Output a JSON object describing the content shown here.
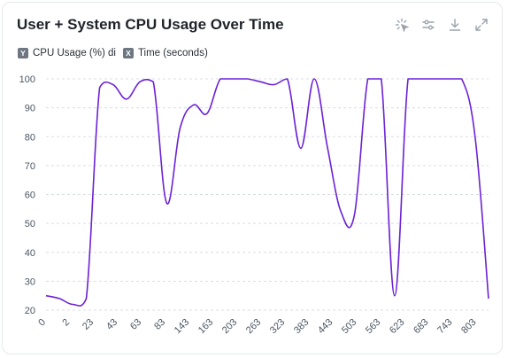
{
  "title": "User + System CPU Usage Over Time",
  "toolbar": {
    "items": [
      {
        "name": "select-icon"
      },
      {
        "name": "filter-sliders-icon"
      },
      {
        "name": "download-icon"
      },
      {
        "name": "expand-icon"
      }
    ]
  },
  "legend": {
    "y_badge": "Y",
    "y_label": "CPU Usage (%) di",
    "x_badge": "X",
    "x_label": "Time (seconds)"
  },
  "colors": {
    "line": "#6b21d6",
    "grid": "#d9dde3",
    "axis_text": "#4b5563"
  },
  "chart_data": {
    "type": "line",
    "title": "User + System CPU Usage Over Time",
    "xlabel": "Time (seconds)",
    "ylabel": "CPU Usage (%) di",
    "ylim": [
      20,
      100
    ],
    "yticks": [
      20,
      30,
      40,
      50,
      60,
      70,
      80,
      90,
      100
    ],
    "xticks": [
      "0",
      "2",
      "23",
      "43",
      "63",
      "83",
      "143",
      "163",
      "203",
      "263",
      "323",
      "383",
      "443",
      "503",
      "563",
      "623",
      "683",
      "743",
      "803"
    ],
    "grid": true,
    "series": [
      {
        "values": [
          25,
          24,
          22,
          24,
          97,
          98,
          93,
          99,
          99,
          57,
          83,
          91,
          88,
          100,
          100,
          100,
          99,
          98,
          100,
          76,
          100,
          76,
          54,
          53,
          100,
          100,
          25,
          100,
          100,
          100,
          100,
          100,
          80,
          24
        ]
      }
    ]
  }
}
